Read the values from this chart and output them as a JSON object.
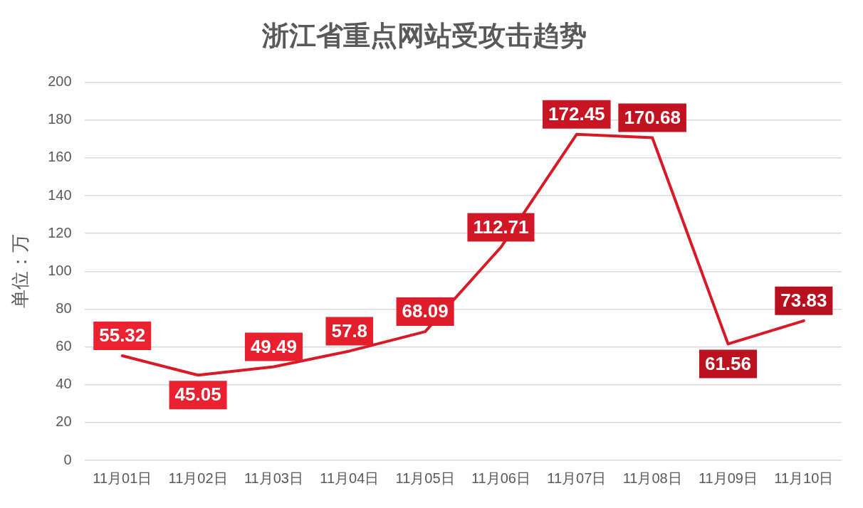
{
  "chart_data": {
    "type": "line",
    "title": "浙江省重点网站受攻击趋势",
    "ylabel": "单位：万",
    "categories": [
      "11月01日",
      "11月02日",
      "11月03日",
      "11月04日",
      "11月05日",
      "11月06日",
      "11月07日",
      "11月08日",
      "11月09日",
      "11月10日"
    ],
    "values": [
      55.32,
      45.05,
      49.49,
      57.8,
      68.09,
      112.71,
      172.45,
      170.68,
      61.56,
      73.83
    ],
    "color": "#d81a26",
    "colors": [
      "#ec2230",
      "#ea2130",
      "#e8202e",
      "#e41f2c",
      "#de1c2a",
      "#d21827",
      "#c81423",
      "#c21220",
      "#bc111f",
      "#b8101e"
    ],
    "ylim": [
      0,
      200
    ],
    "yticks": [
      0,
      20,
      40,
      60,
      80,
      100,
      120,
      140,
      160,
      180,
      200
    ],
    "grid": "y",
    "legend": false,
    "line_style": "solid",
    "data_labels": true
  }
}
